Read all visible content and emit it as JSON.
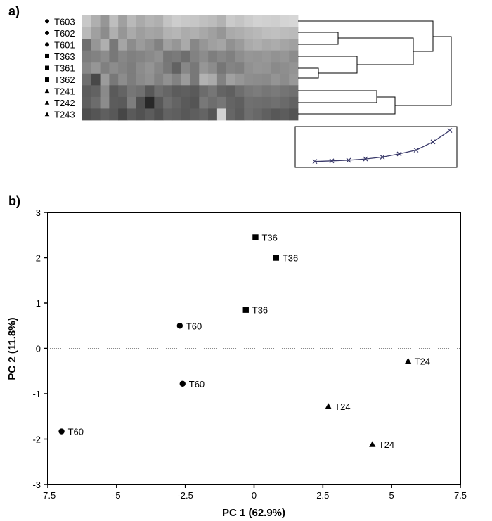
{
  "panel_a": {
    "label": "a)",
    "samples": [
      {
        "name": "T603",
        "marker": "circle"
      },
      {
        "name": "T602",
        "marker": "circle"
      },
      {
        "name": "T601",
        "marker": "circle"
      },
      {
        "name": "T363",
        "marker": "square"
      },
      {
        "name": "T361",
        "marker": "square"
      },
      {
        "name": "T362",
        "marker": "square"
      },
      {
        "name": "T241",
        "marker": "triangle"
      },
      {
        "name": "T242",
        "marker": "triangle"
      },
      {
        "name": "T243",
        "marker": "triangle"
      }
    ],
    "heatmap_gray": [
      [
        200,
        175,
        150,
        190,
        160,
        185,
        170,
        180,
        175,
        195,
        205,
        200,
        198,
        192,
        188,
        178,
        202,
        196,
        204,
        210,
        208,
        206,
        212,
        214
      ],
      [
        185,
        160,
        140,
        175,
        150,
        170,
        158,
        165,
        162,
        178,
        182,
        172,
        176,
        168,
        160,
        150,
        170,
        174,
        180,
        184,
        190,
        192,
        188,
        186
      ],
      [
        110,
        150,
        175,
        120,
        165,
        140,
        155,
        145,
        130,
        160,
        150,
        170,
        135,
        150,
        160,
        165,
        145,
        155,
        170,
        175,
        168,
        172,
        165,
        160
      ],
      [
        125,
        130,
        140,
        120,
        135,
        128,
        132,
        138,
        145,
        118,
        122,
        110,
        130,
        140,
        126,
        135,
        128,
        142,
        150,
        148,
        152,
        146,
        150,
        140
      ],
      [
        135,
        150,
        128,
        140,
        132,
        125,
        140,
        148,
        135,
        120,
        98,
        135,
        120,
        150,
        140,
        118,
        132,
        128,
        145,
        150,
        148,
        138,
        142,
        148
      ],
      [
        110,
        72,
        155,
        120,
        140,
        125,
        138,
        145,
        130,
        145,
        130,
        155,
        120,
        178,
        170,
        130,
        160,
        150,
        142,
        140,
        138,
        148,
        140,
        152
      ],
      [
        92,
        98,
        138,
        90,
        100,
        118,
        112,
        88,
        110,
        102,
        92,
        95,
        90,
        108,
        118,
        100,
        95,
        110,
        120,
        124,
        118,
        122,
        116,
        112
      ],
      [
        95,
        108,
        140,
        92,
        90,
        125,
        80,
        40,
        88,
        110,
        100,
        90,
        85,
        120,
        110,
        118,
        100,
        95,
        112,
        110,
        108,
        112,
        106,
        98
      ],
      [
        78,
        85,
        95,
        88,
        70,
        90,
        82,
        92,
        80,
        98,
        95,
        88,
        94,
        100,
        86,
        210,
        102,
        92,
        110,
        104,
        96,
        88,
        92,
        84
      ]
    ],
    "dendrogram_order": [
      "T603",
      "T602",
      "T601",
      "T363",
      "T361",
      "T362",
      "T241",
      "T242",
      "T243"
    ],
    "inset_profile": [
      0.07,
      0.08,
      0.09,
      0.11,
      0.14,
      0.19,
      0.25,
      0.38,
      0.56
    ]
  },
  "panel_b": {
    "label": "b)"
  },
  "chart_data": {
    "type": "scatter",
    "xlabel": "PC 1 (62.9%)",
    "ylabel": "PC 2 (11.8%)",
    "xlim": [
      -7.5,
      7.5
    ],
    "ylim": [
      -3,
      3
    ],
    "xticks": [
      -7.5,
      -5,
      -2.5,
      0,
      2.5,
      5,
      7.5
    ],
    "xtick_labels": [
      "-7.5",
      "-5",
      "-2.5",
      "0",
      "2.5",
      "5",
      "7.5"
    ],
    "yticks": [
      -3,
      -2,
      -1,
      0,
      1,
      2,
      3
    ],
    "ytick_labels": [
      "-3",
      "-2",
      "-1",
      "0",
      "1",
      "2",
      "3"
    ],
    "reference_lines": {
      "x": 0,
      "y": 0,
      "style": "dotted"
    },
    "grid": false,
    "series": [
      {
        "marker": "circle",
        "points": [
          {
            "x": -2.7,
            "y": 0.5,
            "label": "T60"
          },
          {
            "x": -2.6,
            "y": -0.78,
            "label": "T60"
          },
          {
            "x": -7.0,
            "y": -1.83,
            "label": "T60"
          }
        ]
      },
      {
        "marker": "square",
        "points": [
          {
            "x": 0.05,
            "y": 2.45,
            "label": "T36"
          },
          {
            "x": 0.8,
            "y": 2.0,
            "label": "T36"
          },
          {
            "x": -0.3,
            "y": 0.85,
            "label": "T36"
          }
        ]
      },
      {
        "marker": "triangle",
        "points": [
          {
            "x": 5.6,
            "y": -0.28,
            "label": "T24"
          },
          {
            "x": 2.7,
            "y": -1.28,
            "label": "T24"
          },
          {
            "x": 4.3,
            "y": -2.12,
            "label": "T24"
          }
        ]
      }
    ]
  }
}
